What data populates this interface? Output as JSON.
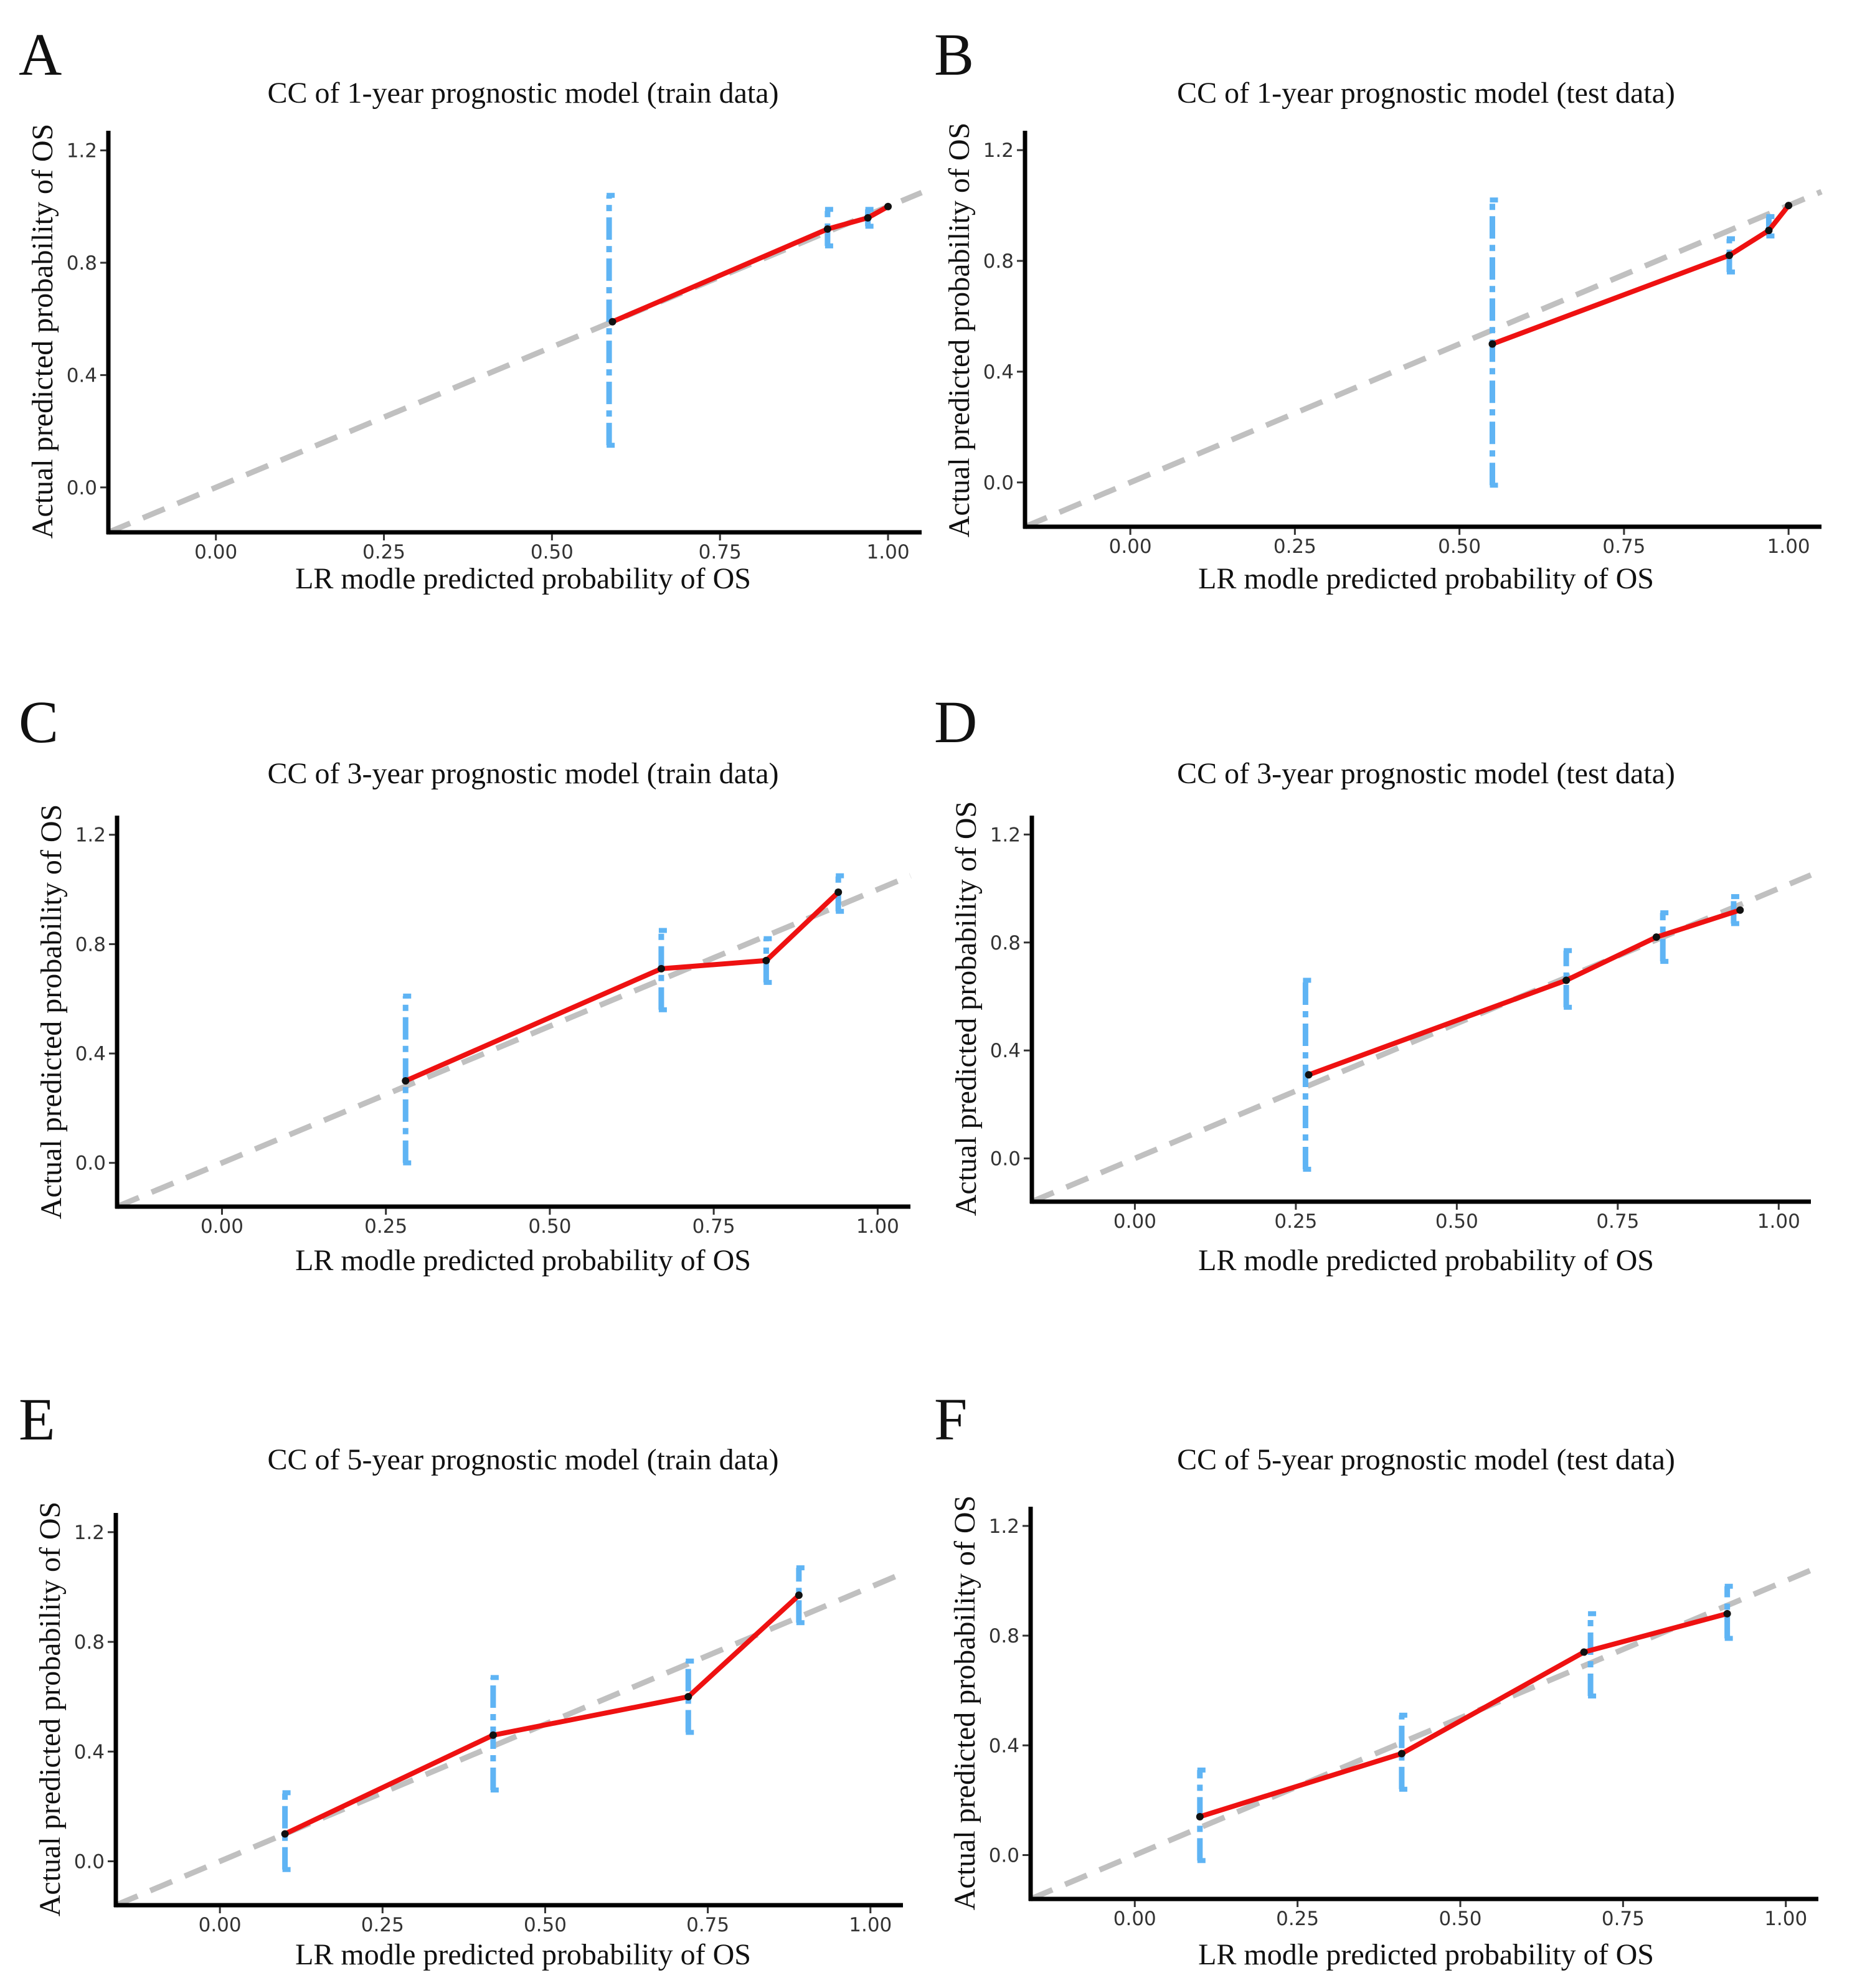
{
  "chart_data": [
    {
      "type": "line",
      "letter": "A",
      "title": "CC of 1-year prognostic model (train data)",
      "xlabel": "LR modle predicted probability of OS",
      "ylabel": "Actual predicted probability of OS",
      "xlim": [
        -0.16,
        1.05
      ],
      "ylim": [
        -0.16,
        1.27
      ],
      "xticks": [
        "0.00",
        "0.25",
        "0.50",
        "0.75",
        "1.00"
      ],
      "yticks": [
        "0.0",
        "0.4",
        "0.8",
        "1.2"
      ],
      "xtick_values": [
        0,
        0.25,
        0.5,
        0.75,
        1.0
      ],
      "ytick_values": [
        0,
        0.4,
        0.8,
        1.2
      ],
      "points": [
        {
          "x": 0.59,
          "y": 0.59
        },
        {
          "x": 0.91,
          "y": 0.92
        },
        {
          "x": 0.97,
          "y": 0.96
        },
        {
          "x": 1.0,
          "y": 1.0
        }
      ],
      "error_bars": [
        {
          "x": 0.585,
          "low": 0.15,
          "high": 1.04
        },
        {
          "x": 0.91,
          "low": 0.86,
          "high": 0.99
        },
        {
          "x": 0.97,
          "low": 0.93,
          "high": 0.99
        }
      ]
    },
    {
      "type": "line",
      "letter": "B",
      "title": "CC of 1-year prognostic model (test data)",
      "xlabel": "LR modle predicted probability of OS",
      "ylabel": "Actual predicted probability of OS",
      "xlim": [
        -0.16,
        1.05
      ],
      "ylim": [
        -0.16,
        1.27
      ],
      "xticks": [
        "0.00",
        "0.25",
        "0.50",
        "0.75",
        "1.00"
      ],
      "yticks": [
        "0.0",
        "0.4",
        "0.8",
        "1.2"
      ],
      "xtick_values": [
        0,
        0.25,
        0.5,
        0.75,
        1.0
      ],
      "ytick_values": [
        0,
        0.4,
        0.8,
        1.2
      ],
      "points": [
        {
          "x": 0.55,
          "y": 0.5
        },
        {
          "x": 0.91,
          "y": 0.82
        },
        {
          "x": 0.97,
          "y": 0.91
        },
        {
          "x": 1.0,
          "y": 1.0
        }
      ],
      "error_bars": [
        {
          "x": 0.55,
          "low": -0.01,
          "high": 1.02
        },
        {
          "x": 0.91,
          "low": 0.76,
          "high": 0.88
        },
        {
          "x": 0.97,
          "low": 0.89,
          "high": 0.96
        }
      ]
    },
    {
      "type": "line",
      "letter": "C",
      "title": "CC of 3-year prognostic model (train data)",
      "xlabel": "LR modle predicted probability of OS",
      "ylabel": "Actual predicted probability of OS",
      "xlim": [
        -0.16,
        1.05
      ],
      "ylim": [
        -0.16,
        1.27
      ],
      "xticks": [
        "0.00",
        "0.25",
        "0.50",
        "0.75",
        "1.00"
      ],
      "yticks": [
        "0.0",
        "0.4",
        "0.8",
        "1.2"
      ],
      "xtick_values": [
        0,
        0.25,
        0.5,
        0.75,
        1.0
      ],
      "ytick_values": [
        0,
        0.4,
        0.8,
        1.2
      ],
      "points": [
        {
          "x": 0.28,
          "y": 0.3
        },
        {
          "x": 0.67,
          "y": 0.71
        },
        {
          "x": 0.83,
          "y": 0.74
        },
        {
          "x": 0.94,
          "y": 0.99
        }
      ],
      "error_bars": [
        {
          "x": 0.28,
          "low": 0.0,
          "high": 0.61
        },
        {
          "x": 0.67,
          "low": 0.56,
          "high": 0.85
        },
        {
          "x": 0.83,
          "low": 0.66,
          "high": 0.82
        },
        {
          "x": 0.94,
          "low": 0.92,
          "high": 1.05
        }
      ]
    },
    {
      "type": "line",
      "letter": "D",
      "title": "CC of 3-year prognostic model (test data)",
      "xlabel": "LR modle predicted probability of OS",
      "ylabel": "Actual predicted probability of OS",
      "xlim": [
        -0.16,
        1.05
      ],
      "ylim": [
        -0.16,
        1.27
      ],
      "xticks": [
        "0.00",
        "0.25",
        "0.50",
        "0.75",
        "1.00"
      ],
      "yticks": [
        "0.0",
        "0.4",
        "0.8",
        "1.2"
      ],
      "xtick_values": [
        0,
        0.25,
        0.5,
        0.75,
        1.0
      ],
      "ytick_values": [
        0,
        0.4,
        0.8,
        1.2
      ],
      "points": [
        {
          "x": 0.27,
          "y": 0.31
        },
        {
          "x": 0.67,
          "y": 0.66
        },
        {
          "x": 0.81,
          "y": 0.82
        },
        {
          "x": 0.94,
          "y": 0.92
        }
      ],
      "error_bars": [
        {
          "x": 0.265,
          "low": -0.04,
          "high": 0.66
        },
        {
          "x": 0.67,
          "low": 0.56,
          "high": 0.77
        },
        {
          "x": 0.82,
          "low": 0.73,
          "high": 0.91
        },
        {
          "x": 0.93,
          "low": 0.87,
          "high": 0.97
        }
      ]
    },
    {
      "type": "line",
      "letter": "E",
      "title": "CC of 5-year prognostic model (train data)",
      "xlabel": "LR modle predicted probability of OS",
      "ylabel": "Actual predicted probability of OS",
      "xlim": [
        -0.16,
        1.05
      ],
      "ylim": [
        -0.16,
        1.27
      ],
      "xticks": [
        "0.00",
        "0.25",
        "0.50",
        "0.75",
        "1.00"
      ],
      "yticks": [
        "0.0",
        "0.4",
        "0.8",
        "1.2"
      ],
      "xtick_values": [
        0,
        0.25,
        0.5,
        0.75,
        1.0
      ],
      "ytick_values": [
        0,
        0.4,
        0.8,
        1.2
      ],
      "points": [
        {
          "x": 0.1,
          "y": 0.1
        },
        {
          "x": 0.42,
          "y": 0.46
        },
        {
          "x": 0.72,
          "y": 0.6
        },
        {
          "x": 0.89,
          "y": 0.97
        }
      ],
      "error_bars": [
        {
          "x": 0.1,
          "low": -0.03,
          "high": 0.25
        },
        {
          "x": 0.42,
          "low": 0.26,
          "high": 0.67
        },
        {
          "x": 0.72,
          "low": 0.47,
          "high": 0.73
        },
        {
          "x": 0.89,
          "low": 0.87,
          "high": 1.07
        }
      ]
    },
    {
      "type": "line",
      "letter": "F",
      "title": "CC of 5-year prognostic model (test data)",
      "xlabel": "LR modle predicted probability of OS",
      "ylabel": "Actual predicted probability of OS",
      "xlim": [
        -0.16,
        1.05
      ],
      "ylim": [
        -0.16,
        1.27
      ],
      "xticks": [
        "0.00",
        "0.25",
        "0.50",
        "0.75",
        "1.00"
      ],
      "yticks": [
        "0.0",
        "0.4",
        "0.8",
        "1.2"
      ],
      "xtick_values": [
        0,
        0.25,
        0.5,
        0.75,
        1.0
      ],
      "ytick_values": [
        0,
        0.4,
        0.8,
        1.2
      ],
      "points": [
        {
          "x": 0.1,
          "y": 0.14
        },
        {
          "x": 0.41,
          "y": 0.37
        },
        {
          "x": 0.69,
          "y": 0.74
        },
        {
          "x": 0.91,
          "y": 0.88
        }
      ],
      "error_bars": [
        {
          "x": 0.1,
          "low": -0.02,
          "high": 0.31
        },
        {
          "x": 0.41,
          "low": 0.24,
          "high": 0.51
        },
        {
          "x": 0.7,
          "low": 0.58,
          "high": 0.88
        },
        {
          "x": 0.91,
          "low": 0.79,
          "high": 0.98
        }
      ]
    }
  ],
  "colors": {
    "curve": "#ee1111",
    "ideal": "#c0c0c0",
    "errorbar": "#5fb4f4",
    "axis": "#000000",
    "point": "#111111"
  }
}
